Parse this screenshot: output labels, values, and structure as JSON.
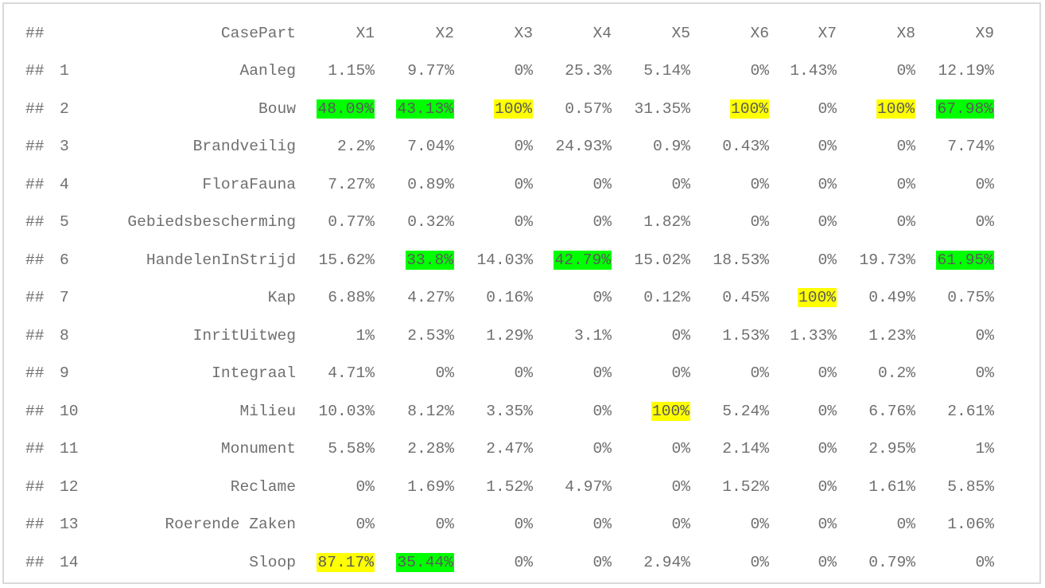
{
  "colors": {
    "green": "#00ff00",
    "yellow": "#ffff00",
    "text": "#6f6f6f",
    "border": "#d9d9d9"
  },
  "prefix": "##",
  "columns": [
    "CasePart",
    "X1",
    "X2",
    "X3",
    "X4",
    "X5",
    "X6",
    "X7",
    "X8",
    "X9"
  ],
  "rows": [
    {
      "idx": "1",
      "name": "Aanleg",
      "vals": [
        "1.15%",
        "9.77%",
        "0%",
        "25.3%",
        "5.14%",
        "0%",
        "1.43%",
        "0%",
        "12.19%"
      ],
      "hl": [
        "",
        "",
        "",
        "",
        "",
        "",
        "",
        "",
        ""
      ]
    },
    {
      "idx": "2",
      "name": "Bouw",
      "vals": [
        "48.09%",
        "43.13%",
        "100%",
        "0.57%",
        "31.35%",
        "100%",
        "0%",
        "100%",
        "67.98%"
      ],
      "hl": [
        "green",
        "green",
        "yellow",
        "",
        "",
        "yellow",
        "",
        "yellow",
        "green"
      ]
    },
    {
      "idx": "3",
      "name": "Brandveilig",
      "vals": [
        "2.2%",
        "7.04%",
        "0%",
        "24.93%",
        "0.9%",
        "0.43%",
        "0%",
        "0%",
        "7.74%"
      ],
      "hl": [
        "",
        "",
        "",
        "",
        "",
        "",
        "",
        "",
        ""
      ]
    },
    {
      "idx": "4",
      "name": "FloraFauna",
      "vals": [
        "7.27%",
        "0.89%",
        "0%",
        "0%",
        "0%",
        "0%",
        "0%",
        "0%",
        "0%"
      ],
      "hl": [
        "",
        "",
        "",
        "",
        "",
        "",
        "",
        "",
        ""
      ]
    },
    {
      "idx": "5",
      "name": "Gebiedsbescherming",
      "vals": [
        "0.77%",
        "0.32%",
        "0%",
        "0%",
        "1.82%",
        "0%",
        "0%",
        "0%",
        "0%"
      ],
      "hl": [
        "",
        "",
        "",
        "",
        "",
        "",
        "",
        "",
        ""
      ]
    },
    {
      "idx": "6",
      "name": "HandelenInStrijd",
      "vals": [
        "15.62%",
        "33.8%",
        "14.03%",
        "42.79%",
        "15.02%",
        "18.53%",
        "0%",
        "19.73%",
        "61.95%"
      ],
      "hl": [
        "",
        "green",
        "",
        "green",
        "",
        "",
        "",
        "",
        "green"
      ]
    },
    {
      "idx": "7",
      "name": "Kap",
      "vals": [
        "6.88%",
        "4.27%",
        "0.16%",
        "0%",
        "0.12%",
        "0.45%",
        "100%",
        "0.49%",
        "0.75%"
      ],
      "hl": [
        "",
        "",
        "",
        "",
        "",
        "",
        "yellow",
        "",
        ""
      ]
    },
    {
      "idx": "8",
      "name": "InritUitweg",
      "vals": [
        "1%",
        "2.53%",
        "1.29%",
        "3.1%",
        "0%",
        "1.53%",
        "1.33%",
        "1.23%",
        "0%"
      ],
      "hl": [
        "",
        "",
        "",
        "",
        "",
        "",
        "",
        "",
        ""
      ]
    },
    {
      "idx": "9",
      "name": "Integraal",
      "vals": [
        "4.71%",
        "0%",
        "0%",
        "0%",
        "0%",
        "0%",
        "0%",
        "0.2%",
        "0%"
      ],
      "hl": [
        "",
        "",
        "",
        "",
        "",
        "",
        "",
        "",
        ""
      ]
    },
    {
      "idx": "10",
      "name": "Milieu",
      "vals": [
        "10.03%",
        "8.12%",
        "3.35%",
        "0%",
        "100%",
        "5.24%",
        "0%",
        "6.76%",
        "2.61%"
      ],
      "hl": [
        "",
        "",
        "",
        "",
        "yellow",
        "",
        "",
        "",
        ""
      ]
    },
    {
      "idx": "11",
      "name": "Monument",
      "vals": [
        "5.58%",
        "2.28%",
        "2.47%",
        "0%",
        "0%",
        "2.14%",
        "0%",
        "2.95%",
        "1%"
      ],
      "hl": [
        "",
        "",
        "",
        "",
        "",
        "",
        "",
        "",
        ""
      ]
    },
    {
      "idx": "12",
      "name": "Reclame",
      "vals": [
        "0%",
        "1.69%",
        "1.52%",
        "4.97%",
        "0%",
        "1.52%",
        "0%",
        "1.61%",
        "5.85%"
      ],
      "hl": [
        "",
        "",
        "",
        "",
        "",
        "",
        "",
        "",
        ""
      ]
    },
    {
      "idx": "13",
      "name": "Roerende Zaken",
      "vals": [
        "0%",
        "0%",
        "0%",
        "0%",
        "0%",
        "0%",
        "0%",
        "0%",
        "1.06%"
      ],
      "hl": [
        "",
        "",
        "",
        "",
        "",
        "",
        "",
        "",
        ""
      ]
    },
    {
      "idx": "14",
      "name": "Sloop",
      "vals": [
        "87.17%",
        "35.44%",
        "0%",
        "0%",
        "2.94%",
        "0%",
        "0%",
        "0.79%",
        "0%"
      ],
      "hl": [
        "yellow",
        "green",
        "",
        "",
        "",
        "",
        "",
        "",
        ""
      ]
    }
  ]
}
